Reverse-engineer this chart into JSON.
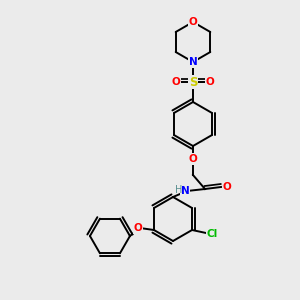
{
  "background_color": "#ebebeb",
  "atom_colors": {
    "C": "#000000",
    "H": "#5a9090",
    "N": "#0000ff",
    "O": "#ff0000",
    "S": "#cccc00",
    "Cl": "#00bb00"
  },
  "figsize": [
    3.0,
    3.0
  ],
  "dpi": 100,
  "bond_lw": 1.4,
  "font_size": 7.5,
  "ring_r": 22
}
